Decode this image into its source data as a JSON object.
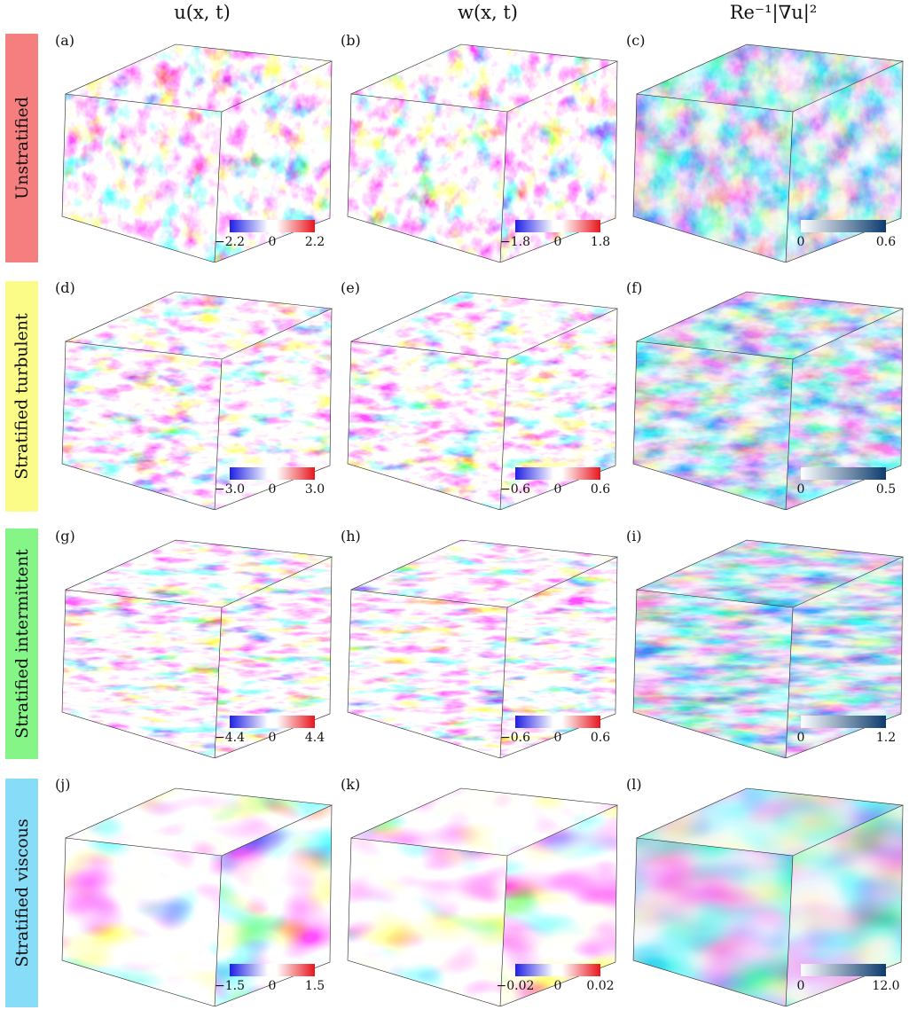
{
  "columns": [
    {
      "title": "u(x, t)"
    },
    {
      "title": "w(x, t)"
    },
    {
      "title": "Re⁻¹|∇u|²"
    }
  ],
  "rows": [
    {
      "label": "Unstratified",
      "color": "#f57f7f",
      "panels": [
        {
          "tag": "(a)",
          "cmap": "diverging",
          "min": "−2.2",
          "mid": "0",
          "max": "2.2"
        },
        {
          "tag": "(b)",
          "cmap": "diverging",
          "min": "−1.8",
          "mid": "0",
          "max": "1.8"
        },
        {
          "tag": "(c)",
          "cmap": "sequential",
          "min": "0",
          "mid": "",
          "max": "0.6"
        }
      ]
    },
    {
      "label": "Stratified turbulent",
      "color": "#fbfb87",
      "panels": [
        {
          "tag": "(d)",
          "cmap": "diverging",
          "min": "−3.0",
          "mid": "0",
          "max": "3.0"
        },
        {
          "tag": "(e)",
          "cmap": "diverging",
          "min": "−0.6",
          "mid": "0",
          "max": "0.6"
        },
        {
          "tag": "(f)",
          "cmap": "sequential",
          "min": "0",
          "mid": "",
          "max": "0.5"
        }
      ]
    },
    {
      "label": "Stratified intermittent",
      "color": "#86f588",
      "panels": [
        {
          "tag": "(g)",
          "cmap": "diverging",
          "min": "−4.4",
          "mid": "0",
          "max": "4.4"
        },
        {
          "tag": "(h)",
          "cmap": "diverging",
          "min": "−0.6",
          "mid": "0",
          "max": "0.6"
        },
        {
          "tag": "(i)",
          "cmap": "sequential",
          "min": "0",
          "mid": "",
          "max": "1.2"
        }
      ]
    },
    {
      "label": "Stratified viscous",
      "color": "#87dcf8",
      "panels": [
        {
          "tag": "(j)",
          "cmap": "diverging",
          "min": "−1.5",
          "mid": "0",
          "max": "1.5"
        },
        {
          "tag": "(k)",
          "cmap": "diverging",
          "min": "−0.02",
          "mid": "0",
          "max": "0.02"
        },
        {
          "tag": "(l)",
          "cmap": "sequential",
          "min": "0",
          "mid": "",
          "max": "12.0"
        }
      ]
    }
  ],
  "palette": {
    "red": "#e8141c",
    "blue": "#1f1fe6",
    "navy": "#0c3b6e",
    "white": "#ffffff"
  }
}
